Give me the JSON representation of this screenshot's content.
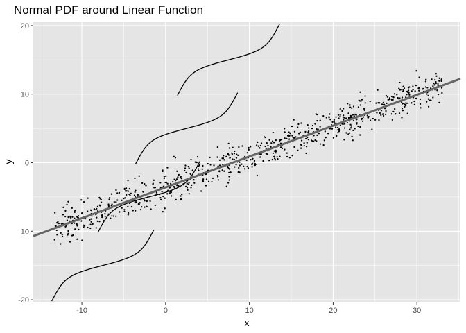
{
  "chart_data": {
    "type": "scatter",
    "title": "Normal PDF around Linear Function",
    "xlabel": "x",
    "ylabel": "y",
    "xlim": [
      -15.8,
      35.2
    ],
    "ylim": [
      -20.4,
      20.6
    ],
    "xticks": [
      -10,
      0,
      10,
      20,
      30
    ],
    "yticks": [
      -20,
      -10,
      0,
      10,
      20
    ],
    "xtick_labels": [
      "-10",
      "0",
      "10",
      "20",
      "30"
    ],
    "ytick_labels": [
      "-20",
      "-10",
      "0",
      "10",
      "20"
    ],
    "panel_background": "#e5e5e5",
    "grid": true,
    "fit_line": {
      "intercept": -3.6,
      "slope": 0.45,
      "color": "#666666"
    },
    "scatter_points": {
      "n": 800,
      "x_range": [
        -13.3,
        33
      ],
      "noise_sd": 1.3,
      "color": "#000000"
    },
    "pdf_curves": [
      {
        "x_center": -7.5,
        "y_center": -15,
        "amplitude": 3.9,
        "sd": 1.3
      },
      {
        "x_center": -2.0,
        "y_center": -5,
        "amplitude": 3.9,
        "sd": 1.3
      },
      {
        "x_center": 2.5,
        "y_center": 5,
        "amplitude": 3.9,
        "sd": 1.3
      },
      {
        "x_center": 7.5,
        "y_center": 15,
        "amplitude": 3.9,
        "sd": 1.3
      }
    ]
  }
}
